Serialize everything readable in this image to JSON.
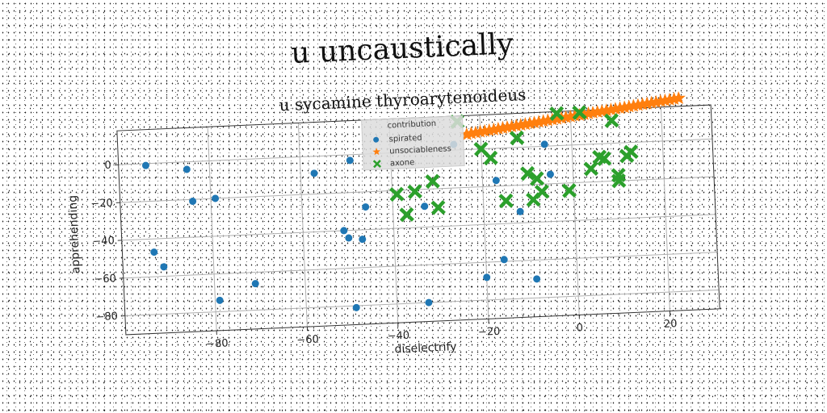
{
  "chart_data": {
    "type": "scatter",
    "suptitle": "u uncaustically",
    "title": "u sycamine thyroarytenoideus",
    "xlabel": "diselectrify",
    "ylabel": "apprehending",
    "xlim": [
      -100,
      31
    ],
    "ylim": [
      -90,
      18
    ],
    "xticks": [
      -80,
      -60,
      -40,
      -20,
      0,
      20
    ],
    "yticks": [
      0,
      -20,
      -40,
      -60,
      -80
    ],
    "xtick_labels": [
      "−80",
      "−60",
      "−40",
      "−20",
      "0",
      "20"
    ],
    "ytick_labels": [
      "0",
      "−20",
      "−40",
      "−60",
      "−80"
    ],
    "grid": true,
    "legend": {
      "title": "contribution",
      "placement": "top-center",
      "entries": [
        "spirated",
        "unsociableness",
        "axone"
      ]
    },
    "series": [
      {
        "name": "spirated",
        "marker": "circle",
        "color": "#1f77b4",
        "points": [
          [
            -94,
            -1
          ],
          [
            -93,
            -47
          ],
          [
            -91,
            -55
          ],
          [
            -85,
            -4
          ],
          [
            -84,
            -21
          ],
          [
            -79,
            -20
          ],
          [
            -79,
            -74
          ],
          [
            -71,
            -66
          ],
          [
            -57,
            -9
          ],
          [
            -51,
            -40
          ],
          [
            -50,
            -44
          ],
          [
            -49,
            -3
          ],
          [
            -49,
            -81
          ],
          [
            -47,
            -45
          ],
          [
            -46,
            -28
          ],
          [
            -33,
            -29
          ],
          [
            -33,
            -80
          ],
          [
            -26,
            3
          ],
          [
            -20,
            -68
          ],
          [
            -17,
            -17
          ],
          [
            -16,
            -59
          ],
          [
            -12,
            -34
          ],
          [
            -9,
            -70
          ],
          [
            -6,
            1
          ],
          [
            -5,
            -15
          ]
        ]
      },
      {
        "name": "unsociableness",
        "marker": "star",
        "color": "#ff7f0e",
        "points": [
          [
            -23,
            8
          ],
          [
            -22,
            8.4
          ],
          [
            -21,
            8.7
          ],
          [
            -20,
            9
          ],
          [
            -19,
            9.3
          ],
          [
            -18,
            9.6
          ],
          [
            -17,
            9.9
          ],
          [
            -16,
            10.2
          ],
          [
            -15,
            10.5
          ],
          [
            -14,
            10.8
          ],
          [
            -13,
            11.1
          ],
          [
            -12,
            11.4
          ],
          [
            -11,
            11.7
          ],
          [
            -10,
            12
          ],
          [
            -9,
            12.3
          ],
          [
            -8,
            12.6
          ],
          [
            -7,
            12.9
          ],
          [
            -6,
            13.2
          ],
          [
            -5,
            13.5
          ],
          [
            -4,
            13.8
          ],
          [
            -3,
            14.1
          ],
          [
            -2,
            14.4
          ],
          [
            -1,
            14.7
          ],
          [
            0,
            15
          ],
          [
            1,
            15.3
          ],
          [
            2,
            15.6
          ],
          [
            3,
            15.9
          ],
          [
            4,
            16.2
          ],
          [
            5,
            16.5
          ],
          [
            6,
            16.8
          ],
          [
            7,
            17.1
          ],
          [
            8,
            17.4
          ],
          [
            9,
            17.7
          ],
          [
            10,
            18
          ],
          [
            11,
            18.3
          ],
          [
            12,
            18.6
          ],
          [
            13,
            18.9
          ],
          [
            14,
            19.2
          ],
          [
            15,
            19.5
          ],
          [
            16,
            19.8
          ],
          [
            17,
            20.1
          ],
          [
            18,
            20.4
          ],
          [
            19,
            20.7
          ],
          [
            20,
            21
          ],
          [
            21,
            21.3
          ],
          [
            22,
            21.6
          ],
          [
            23,
            21.9
          ],
          [
            24,
            22.2
          ]
        ]
      },
      {
        "name": "axone",
        "marker": "x",
        "color": "#2ca02c",
        "points": [
          [
            -39,
            -22
          ],
          [
            -37,
            -33
          ],
          [
            -35,
            -21
          ],
          [
            -31,
            -16
          ],
          [
            -30,
            -30
          ],
          [
            -25,
            15
          ],
          [
            -20,
            0
          ],
          [
            -18,
            -5
          ],
          [
            -15,
            -28
          ],
          [
            -12,
            5
          ],
          [
            -10,
            -14
          ],
          [
            -9,
            -28
          ],
          [
            -8,
            -17
          ],
          [
            -7,
            -24
          ],
          [
            -3,
            17
          ],
          [
            -1,
            -24
          ],
          [
            2,
            17
          ],
          [
            4,
            -13
          ],
          [
            6,
            -7
          ],
          [
            7,
            -8
          ],
          [
            9,
            12
          ],
          [
            10,
            -17
          ],
          [
            10,
            -20
          ],
          [
            12,
            -7
          ],
          [
            13,
            -5
          ]
        ]
      }
    ]
  }
}
